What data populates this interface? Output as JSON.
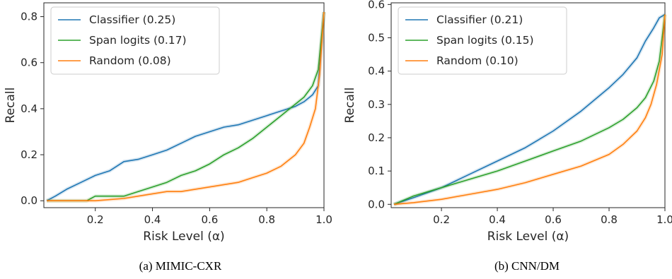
{
  "chart_data": [
    {
      "type": "line",
      "caption": "(a) MIMIC-CXR",
      "xlabel": "Risk Level (α)",
      "ylabel": "Recall",
      "xlim": [
        0.02,
        1.0
      ],
      "ylim": [
        -0.03,
        0.86
      ],
      "xticks": [
        "0.2",
        "0.4",
        "0.6",
        "0.8",
        "1.0"
      ],
      "yticks": [
        "0.0",
        "0.2",
        "0.4",
        "0.6",
        "0.8"
      ],
      "grid": false,
      "legend_position": "top-left",
      "series": [
        {
          "name": "Classifier (0.25)",
          "color": "#1f77b4",
          "x": [
            0.03,
            0.06,
            0.1,
            0.15,
            0.2,
            0.25,
            0.3,
            0.35,
            0.4,
            0.45,
            0.5,
            0.55,
            0.6,
            0.65,
            0.7,
            0.75,
            0.8,
            0.85,
            0.9,
            0.93,
            0.96,
            0.98,
            1.0
          ],
          "y": [
            0.0,
            0.02,
            0.05,
            0.08,
            0.11,
            0.13,
            0.17,
            0.18,
            0.2,
            0.22,
            0.25,
            0.28,
            0.3,
            0.32,
            0.33,
            0.35,
            0.37,
            0.39,
            0.41,
            0.43,
            0.46,
            0.5,
            0.82
          ]
        },
        {
          "name": "Span logits (0.17)",
          "color": "#2ca02c",
          "x": [
            0.03,
            0.1,
            0.17,
            0.2,
            0.25,
            0.3,
            0.35,
            0.4,
            0.45,
            0.5,
            0.55,
            0.6,
            0.65,
            0.7,
            0.75,
            0.8,
            0.85,
            0.9,
            0.93,
            0.96,
            0.98,
            1.0
          ],
          "y": [
            0.0,
            0.0,
            0.0,
            0.02,
            0.02,
            0.02,
            0.04,
            0.06,
            0.08,
            0.11,
            0.13,
            0.16,
            0.2,
            0.23,
            0.27,
            0.32,
            0.37,
            0.42,
            0.45,
            0.5,
            0.57,
            0.82
          ]
        },
        {
          "name": "Random (0.08)",
          "color": "#ff7f0e",
          "x": [
            0.03,
            0.1,
            0.2,
            0.3,
            0.35,
            0.4,
            0.45,
            0.5,
            0.55,
            0.6,
            0.65,
            0.7,
            0.75,
            0.8,
            0.85,
            0.9,
            0.93,
            0.95,
            0.97,
            0.985,
            1.0
          ],
          "y": [
            0.0,
            0.0,
            0.0,
            0.01,
            0.02,
            0.03,
            0.04,
            0.04,
            0.05,
            0.06,
            0.07,
            0.08,
            0.1,
            0.12,
            0.15,
            0.2,
            0.25,
            0.32,
            0.4,
            0.55,
            0.82
          ]
        }
      ]
    },
    {
      "type": "line",
      "caption": "(b) CNN/DM",
      "xlabel": "Risk Level (α)",
      "ylabel": "Recall",
      "xlim": [
        0.02,
        1.0
      ],
      "ylim": [
        -0.01,
        0.605
      ],
      "xticks": [
        "0.2",
        "0.4",
        "0.6",
        "0.8",
        "1.0"
      ],
      "yticks": [
        "0.0",
        "0.1",
        "0.2",
        "0.3",
        "0.4",
        "0.5",
        "0.6"
      ],
      "grid": false,
      "legend_position": "top-left",
      "series": [
        {
          "name": "Classifier (0.21)",
          "color": "#1f77b4",
          "x": [
            0.03,
            0.1,
            0.2,
            0.3,
            0.4,
            0.5,
            0.6,
            0.7,
            0.8,
            0.85,
            0.9,
            0.93,
            0.96,
            0.98,
            1.0
          ],
          "y": [
            0.0,
            0.02,
            0.05,
            0.09,
            0.13,
            0.17,
            0.22,
            0.28,
            0.35,
            0.39,
            0.44,
            0.49,
            0.53,
            0.56,
            0.57
          ]
        },
        {
          "name": "Span logits (0.15)",
          "color": "#2ca02c",
          "x": [
            0.03,
            0.1,
            0.2,
            0.3,
            0.4,
            0.5,
            0.6,
            0.7,
            0.8,
            0.85,
            0.9,
            0.93,
            0.96,
            0.98,
            1.0
          ],
          "y": [
            0.0,
            0.025,
            0.05,
            0.075,
            0.1,
            0.13,
            0.16,
            0.19,
            0.23,
            0.255,
            0.29,
            0.32,
            0.37,
            0.43,
            0.57
          ]
        },
        {
          "name": "Random (0.10)",
          "color": "#ff7f0e",
          "x": [
            0.03,
            0.1,
            0.15,
            0.2,
            0.3,
            0.4,
            0.5,
            0.6,
            0.7,
            0.8,
            0.85,
            0.9,
            0.93,
            0.95,
            0.97,
            0.99,
            1.0
          ],
          "y": [
            0.0,
            0.005,
            0.01,
            0.015,
            0.03,
            0.045,
            0.065,
            0.09,
            0.115,
            0.15,
            0.18,
            0.22,
            0.26,
            0.3,
            0.36,
            0.45,
            0.57
          ]
        }
      ]
    }
  ]
}
